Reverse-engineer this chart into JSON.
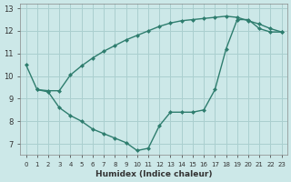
{
  "xlabel": "Humidex (Indice chaleur)",
  "bg_color": "#cce8e8",
  "grid_color": "#aacfcf",
  "line_color": "#2e7d6e",
  "line1_x": [
    0,
    1,
    2,
    3,
    4,
    5,
    6,
    7,
    8,
    9,
    10,
    11,
    12,
    13,
    14,
    15,
    16,
    17,
    18,
    19,
    20,
    21,
    22,
    23
  ],
  "line1_y": [
    10.5,
    9.4,
    9.3,
    8.6,
    8.25,
    8.0,
    7.65,
    7.45,
    7.25,
    7.05,
    6.7,
    6.8,
    7.8,
    8.4,
    8.4,
    8.4,
    8.5,
    9.4,
    11.2,
    12.5,
    12.5,
    12.1,
    11.95,
    11.95
  ],
  "line2_x": [
    1,
    2,
    3,
    4,
    5,
    6,
    7,
    8,
    9,
    10,
    11,
    12,
    13,
    14,
    15,
    16,
    17,
    18,
    19,
    20,
    21,
    22,
    23
  ],
  "line2_y": [
    9.4,
    9.35,
    9.35,
    10.05,
    10.45,
    10.8,
    11.1,
    11.35,
    11.6,
    11.8,
    12.0,
    12.2,
    12.35,
    12.45,
    12.5,
    12.55,
    12.6,
    12.65,
    12.6,
    12.45,
    12.3,
    12.1,
    11.95
  ],
  "xlim": [
    -0.5,
    23.5
  ],
  "ylim": [
    6.5,
    13.2
  ],
  "yticks": [
    7,
    8,
    9,
    10,
    11,
    12,
    13
  ],
  "xticks": [
    0,
    1,
    2,
    3,
    4,
    5,
    6,
    7,
    8,
    9,
    10,
    11,
    12,
    13,
    14,
    15,
    16,
    17,
    18,
    19,
    20,
    21,
    22,
    23
  ]
}
